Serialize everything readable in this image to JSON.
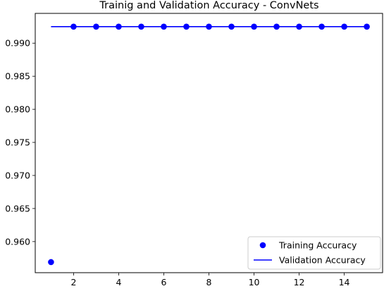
{
  "chart_data": {
    "type": "line",
    "title": "Trainig and Validation Accuracy - ConvNets",
    "xlabel": "",
    "ylabel": "",
    "xlim": [
      0.3,
      15.7
    ],
    "ylim": [
      0.9553,
      0.9945
    ],
    "xticks": [
      2,
      4,
      6,
      8,
      10,
      12,
      14
    ],
    "yticks": [
      0.96,
      0.965,
      0.97,
      0.975,
      0.98,
      0.985,
      0.99
    ],
    "grid": false,
    "legend_position": "lower-right",
    "series": [
      {
        "name": "Training Accuracy",
        "style": "markers",
        "color": "#0000ff",
        "x": [
          1,
          2,
          3,
          4,
          5,
          6,
          7,
          8,
          9,
          10,
          11,
          12,
          13,
          14,
          15
        ],
        "y": [
          0.9569,
          0.9925,
          0.9925,
          0.9925,
          0.9925,
          0.9925,
          0.9925,
          0.9925,
          0.9925,
          0.9925,
          0.9925,
          0.9925,
          0.9925,
          0.9925,
          0.9925
        ]
      },
      {
        "name": "Validation Accuracy",
        "style": "line",
        "color": "#0000ff",
        "x": [
          1,
          2,
          3,
          4,
          5,
          6,
          7,
          8,
          9,
          10,
          11,
          12,
          13,
          14,
          15
        ],
        "y": [
          0.9925,
          0.9925,
          0.9925,
          0.9925,
          0.9925,
          0.9925,
          0.9925,
          0.9925,
          0.9925,
          0.9925,
          0.9925,
          0.9925,
          0.9925,
          0.9925,
          0.9925
        ]
      }
    ]
  }
}
